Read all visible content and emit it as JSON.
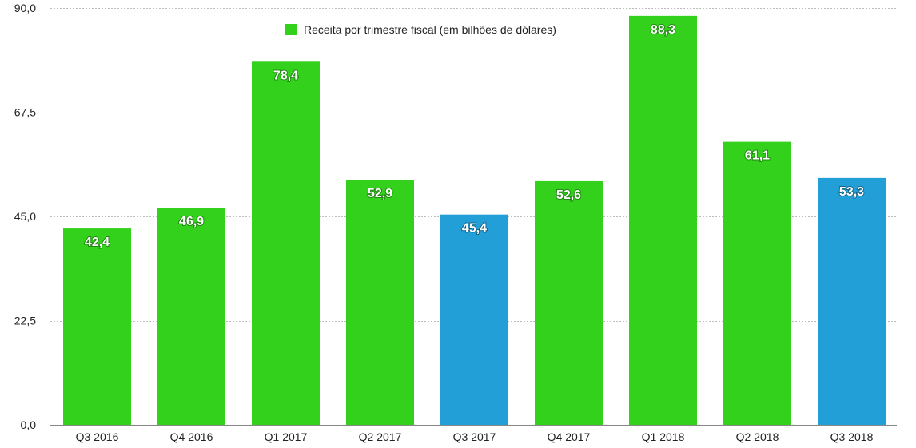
{
  "chart_data": {
    "type": "bar",
    "categories": [
      "Q3 2016",
      "Q4 2016",
      "Q1 2017",
      "Q2 2017",
      "Q3 2017",
      "Q4 2017",
      "Q1 2018",
      "Q2 2018",
      "Q3 2018"
    ],
    "series": [
      {
        "name": "Receita por trimestre fiscal (em bilhões de dólares)",
        "values": [
          42.4,
          46.9,
          78.4,
          52.9,
          45.4,
          52.6,
          88.3,
          61.1,
          53.3
        ],
        "value_labels": [
          "42,4",
          "46,9",
          "78,4",
          "52,9",
          "45,4",
          "52,6",
          "88,3",
          "61,1",
          "53,3"
        ]
      }
    ],
    "bar_colors": [
      "#33d11c",
      "#33d11c",
      "#33d11c",
      "#33d11c",
      "#229fd6",
      "#33d11c",
      "#33d11c",
      "#33d11c",
      "#229fd6"
    ],
    "legend_color": "#33d11c",
    "legend_position": "top-center",
    "ylim": [
      0,
      90
    ],
    "yticks": [
      0,
      22.5,
      45,
      67.5,
      90
    ],
    "ytick_labels": [
      "0,0",
      "22,5",
      "45,0",
      "67,5",
      "90,0"
    ],
    "grid": true,
    "title": "",
    "xlabel": "",
    "ylabel": ""
  }
}
